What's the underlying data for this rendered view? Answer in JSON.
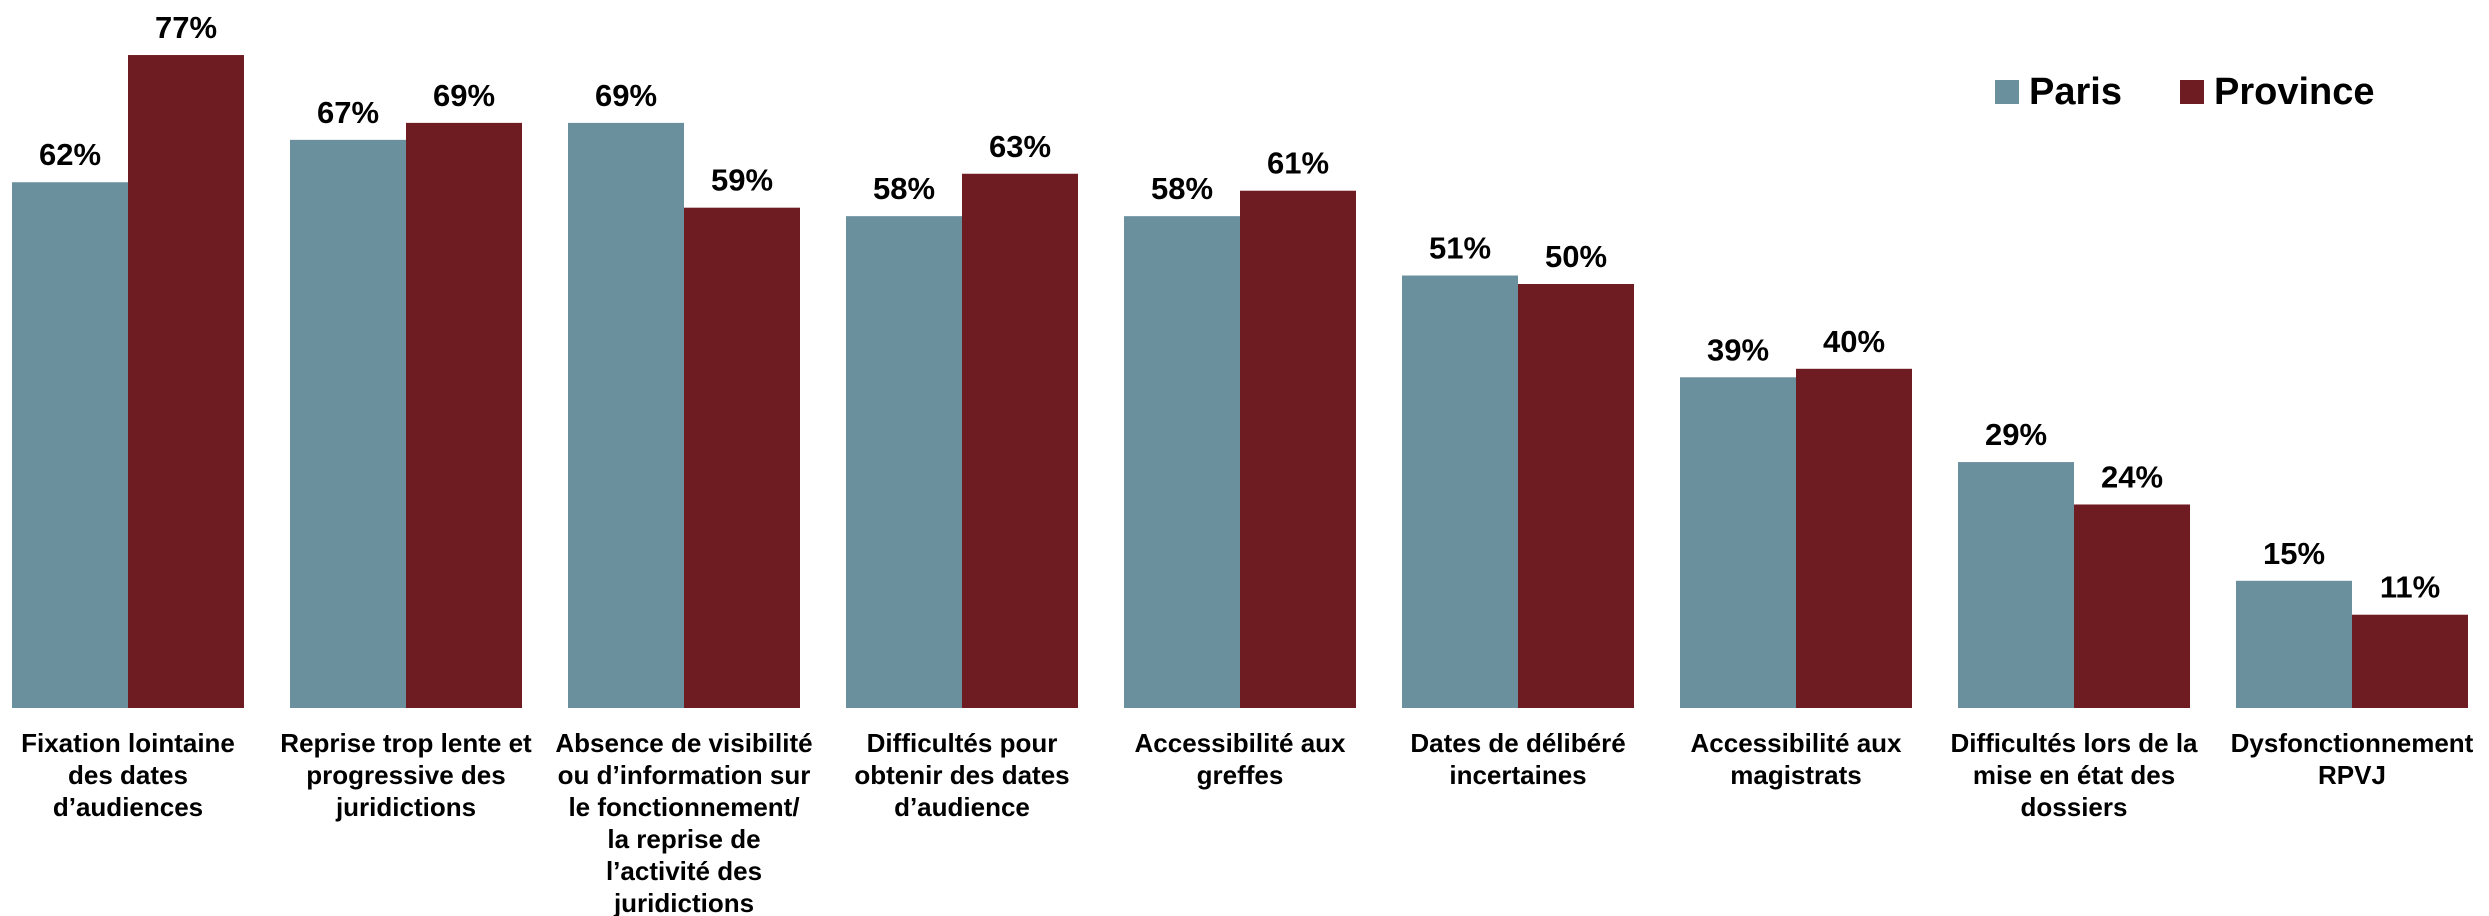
{
  "chart_data": {
    "type": "bar",
    "categories": [
      [
        "Fixation lointaine",
        "des dates",
        "d’audiences"
      ],
      [
        "Reprise trop lente et",
        "progressive des",
        "juridictions"
      ],
      [
        "Absence de visibilité",
        "ou d’information sur",
        "le fonctionnement/",
        "la reprise de",
        "l’activité des",
        "juridictions"
      ],
      [
        "Difficultés pour",
        "obtenir des dates",
        "d’audience"
      ],
      [
        "Accessibilité aux",
        "greffes"
      ],
      [
        "Dates de délibéré",
        "incertaines"
      ],
      [
        "Accessibilité aux",
        "magistrats"
      ],
      [
        "Difficultés lors de la",
        "mise en état des",
        "dossiers"
      ],
      [
        "Dysfonctionnement",
        "RPVJ"
      ]
    ],
    "series": [
      {
        "name": "Paris",
        "color": "#6A909E",
        "values": [
          62,
          67,
          69,
          58,
          58,
          51,
          39,
          29,
          15
        ],
        "labels": [
          "62%",
          "67%",
          "69%",
          "58%",
          "58%",
          "51%",
          "39%",
          "29%",
          "15%"
        ]
      },
      {
        "name": "Province",
        "color": "#6E1B22",
        "values": [
          77,
          69,
          59,
          63,
          61,
          50,
          40,
          24,
          11
        ],
        "labels": [
          "77%",
          "69%",
          "59%",
          "63%",
          "61%",
          "50%",
          "40%",
          "24%",
          "11%"
        ]
      }
    ],
    "ylim": [
      0,
      77
    ],
    "unit": "%",
    "grid": false,
    "legend_position": "top-right",
    "xlabel": "",
    "ylabel": ""
  }
}
